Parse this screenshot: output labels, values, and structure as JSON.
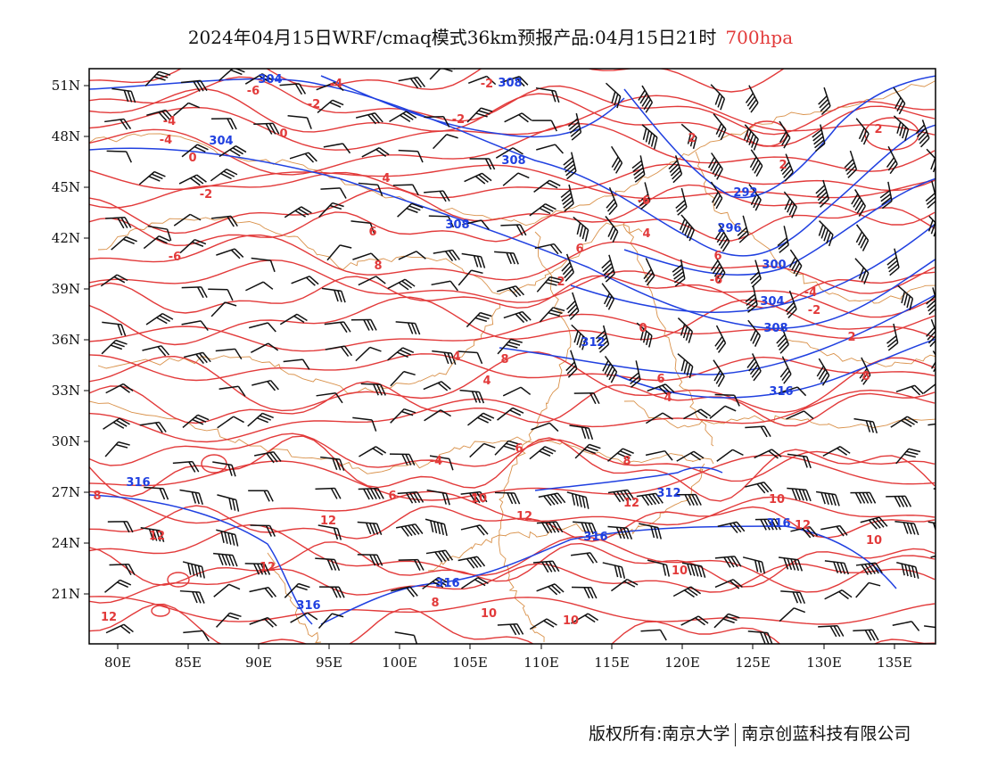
{
  "title": {
    "main": "2024年04月15日WRF/cmaq模式36km预报产品:04月15日21时",
    "level": "700hpa"
  },
  "map": {
    "lon_labels": [
      "80E",
      "85E",
      "90E",
      "95E",
      "100E",
      "105E",
      "110E",
      "115E",
      "120E",
      "125E",
      "130E",
      "135E"
    ],
    "lat_labels": [
      "51N",
      "48N",
      "45N",
      "42N",
      "39N",
      "36N",
      "33N",
      "30N",
      "27N",
      "24N",
      "21N"
    ],
    "colors": {
      "height_contour": "#2040e0",
      "temperature_contour": "#e23a3a",
      "boundary": "#d9914a",
      "wind_barb": "#111111"
    },
    "height_labels": [
      "304",
      "308",
      "304",
      "308",
      "308",
      "292",
      "296",
      "300",
      "304",
      "308",
      "312",
      "316",
      "312",
      "316",
      "316",
      "316",
      "316",
      "316"
    ],
    "temp_labels": [
      "-4",
      "-6",
      "-2",
      "-2",
      "-4",
      "-2",
      "0",
      "-4",
      "0",
      "2",
      "2",
      "2",
      "4",
      "-2",
      "-6",
      "4",
      "6",
      "6",
      "-6",
      "6",
      "8",
      "2",
      "-6",
      "-4",
      "-2",
      "0",
      "2",
      "4",
      "8",
      "4",
      "6",
      "8",
      "4",
      "-4",
      "6",
      "8",
      "10",
      "12",
      "8",
      "10",
      "12",
      "12",
      "12",
      "10",
      "12",
      "8",
      "10",
      "12",
      "10",
      "6",
      "12",
      "10"
    ]
  },
  "footer": {
    "left": "版权所有:南京大学",
    "right": "南京创蓝科技有限公司"
  }
}
